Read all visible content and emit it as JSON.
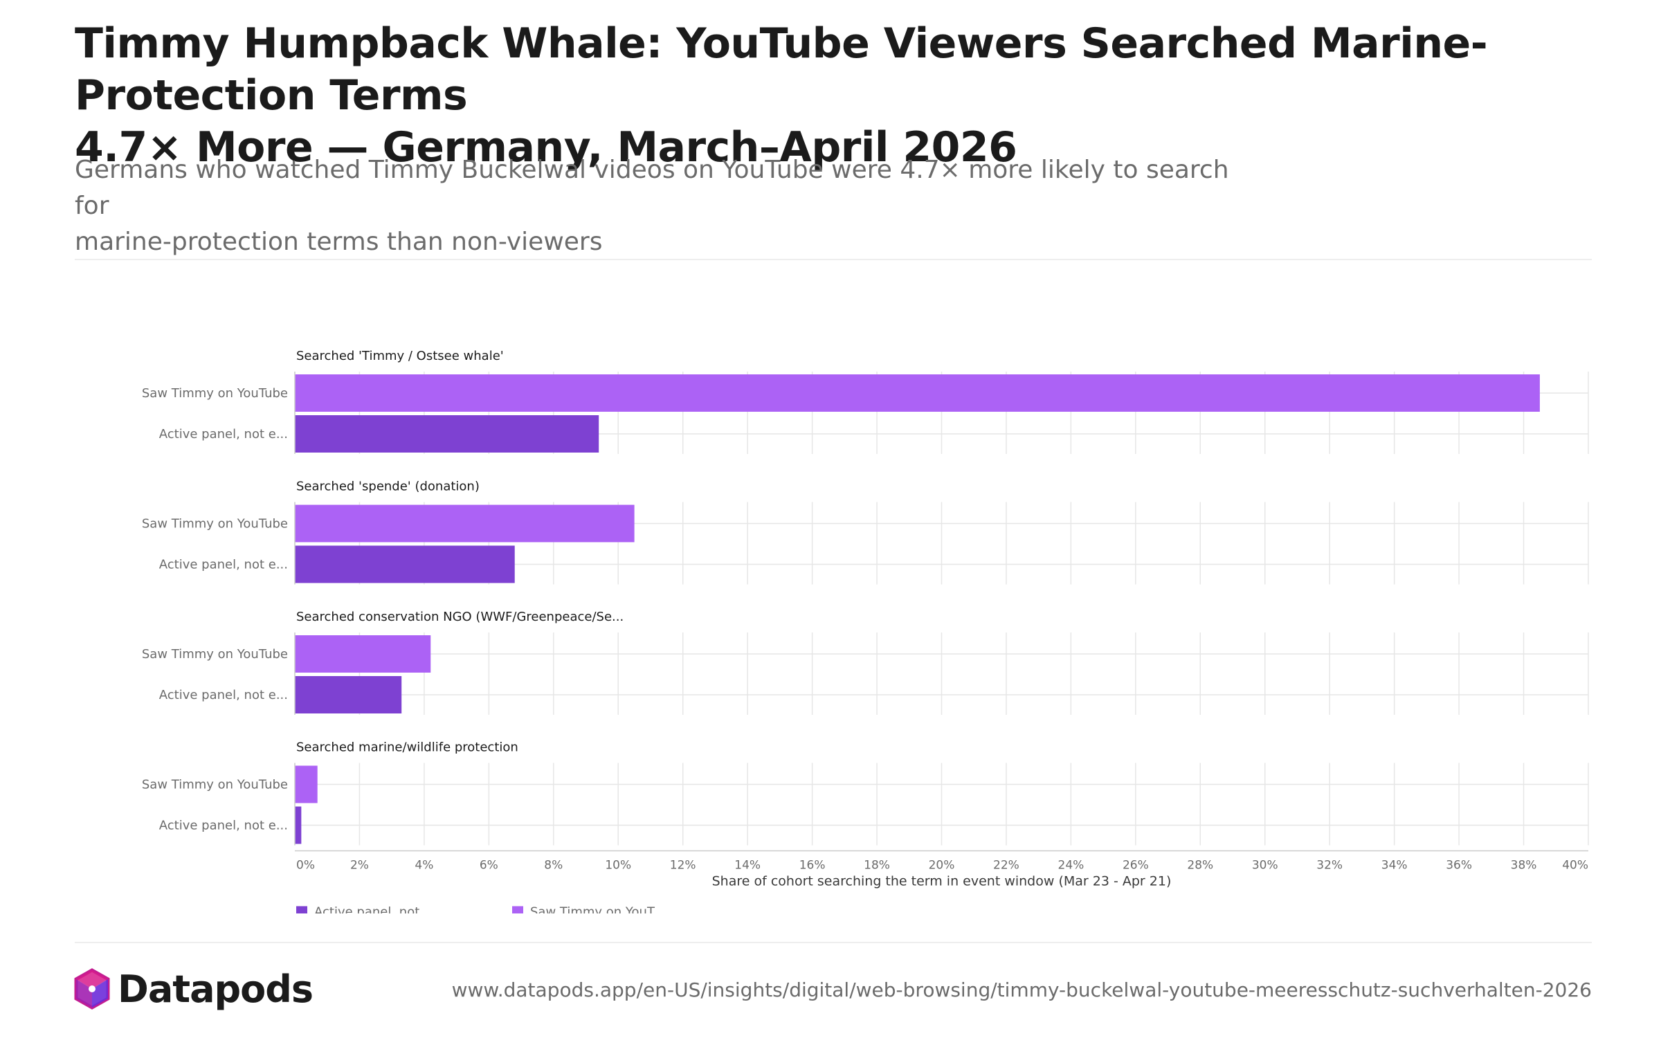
{
  "header": {
    "title_line1": "Timmy Humpback Whale: YouTube Viewers Searched Marine-Protection Terms",
    "title_line2": "4.7× More — Germany, March–April 2026",
    "subtitle_line1": "Germans who watched Timmy Buckelwal videos on YouTube were 4.7× more likely to search for",
    "subtitle_line2": "marine-protection terms than non-viewers"
  },
  "footer": {
    "brand": "Datapods",
    "url": "www.datapods.app/en-US/insights/digital/web-browsing/timmy-buckelwal-youtube-meeresschutz-suchverhalten-2026"
  },
  "colors": {
    "viewers": "#ac62f5",
    "non_viewers": "#7e41d2",
    "grid": "#e6e6e6",
    "axis_text": "#6b6b6b",
    "logo_pink": "#d81b8c",
    "logo_purple": "#6c2bd9"
  },
  "chart_data": {
    "type": "bar",
    "orientation": "horizontal",
    "xlabel": "Share of cohort searching the term in event window (Mar 23 - Apr 21)",
    "xlim": [
      0,
      40
    ],
    "x_ticks": [
      "0%",
      "2%",
      "4%",
      "6%",
      "8%",
      "10%",
      "12%",
      "14%",
      "16%",
      "18%",
      "20%",
      "22%",
      "24%",
      "26%",
      "28%",
      "30%",
      "32%",
      "34%",
      "36%",
      "38%",
      "40%"
    ],
    "grid": true,
    "legend_position": "bottom-left",
    "series_labels": [
      "Saw Timmy on YouTube",
      "Active panel, not e..."
    ],
    "legend": [
      {
        "label": "Active panel, not...",
        "color_key": "non_viewers"
      },
      {
        "label": "Saw Timmy on YouT...",
        "color_key": "viewers"
      }
    ],
    "panels": [
      {
        "title": "Searched 'Timmy / Ostsee whale'",
        "values": [
          38.5,
          9.4
        ]
      },
      {
        "title": "Searched 'spende' (donation)",
        "values": [
          10.5,
          6.8
        ]
      },
      {
        "title": "Searched conservation NGO (WWF/Greenpeace/Se...",
        "values": [
          4.2,
          3.3
        ]
      },
      {
        "title": "Searched marine/wildlife protection",
        "values": [
          0.7,
          0.2
        ]
      }
    ]
  }
}
